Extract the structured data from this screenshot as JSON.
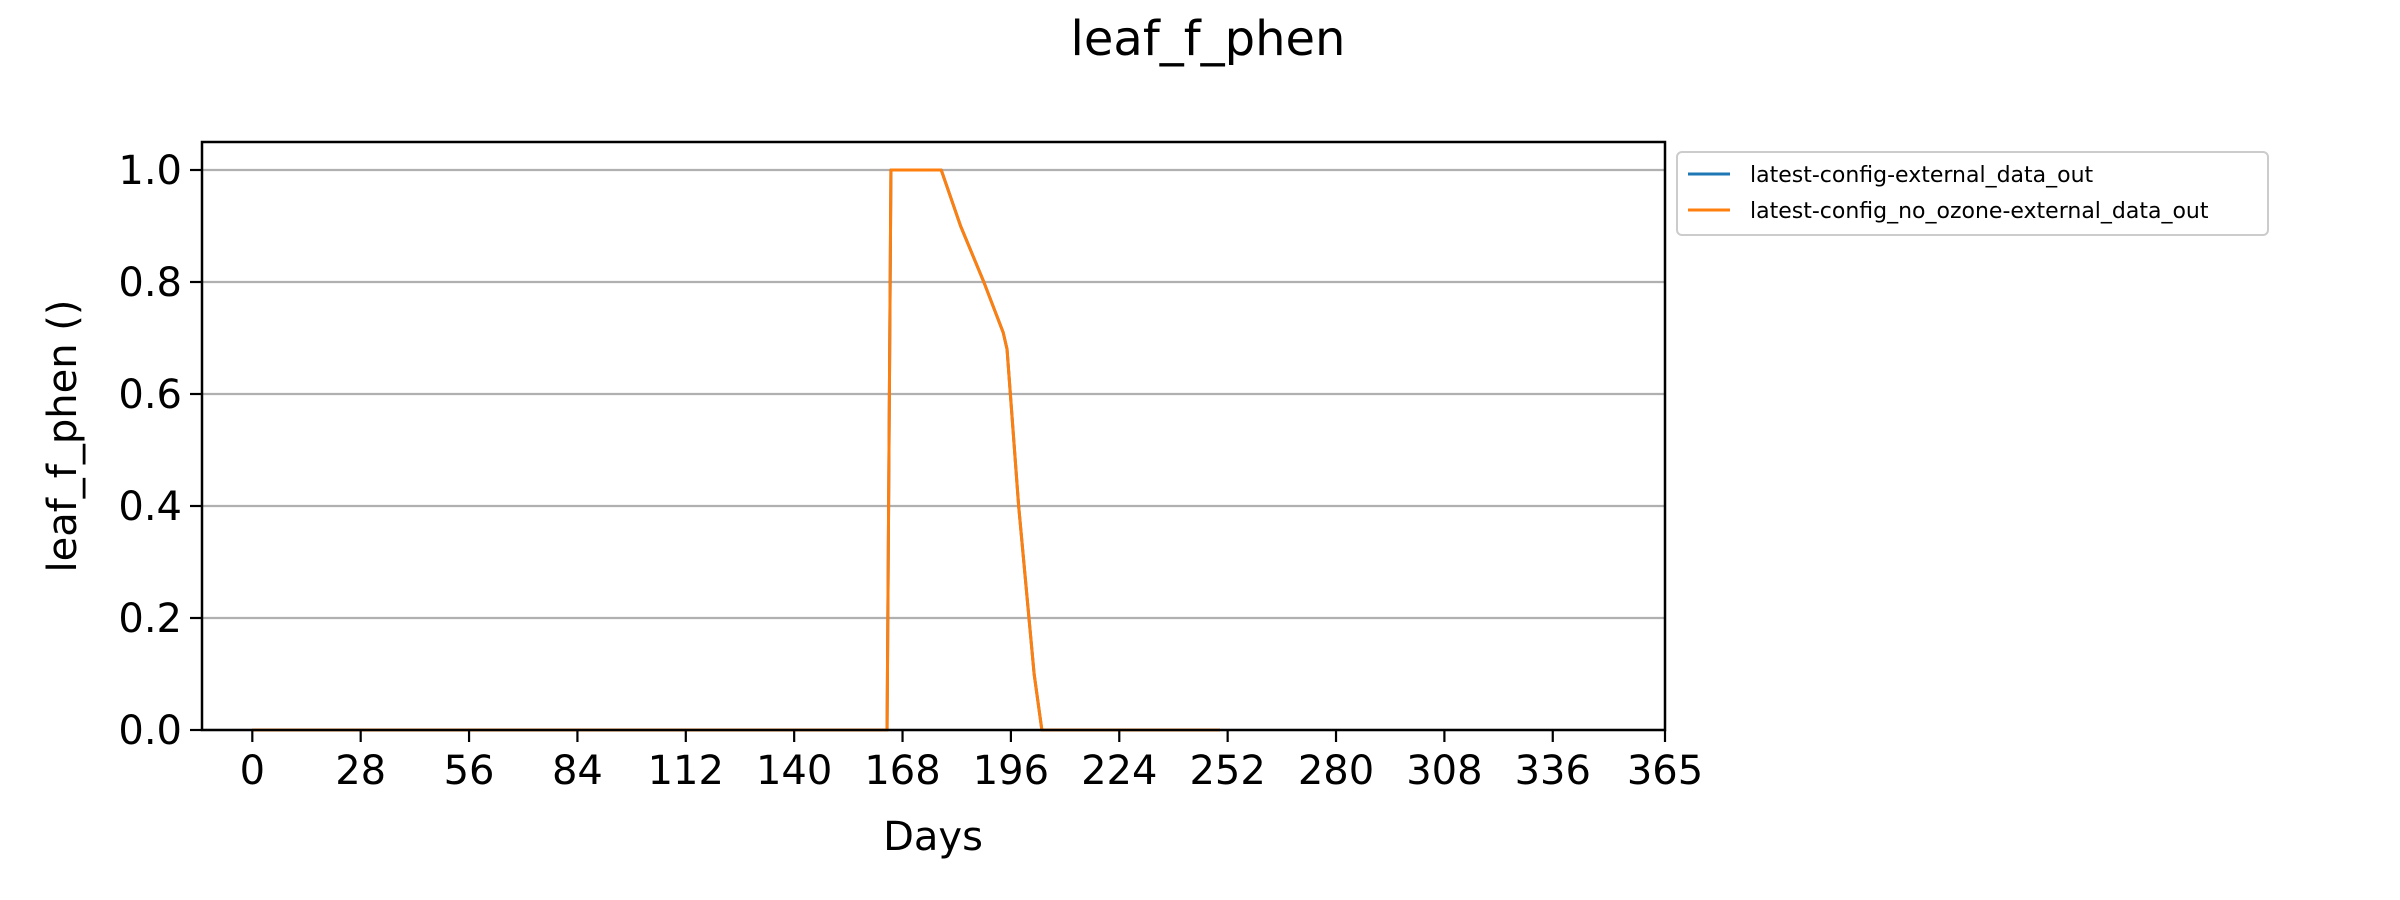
{
  "chart_data": {
    "type": "line",
    "title": "leaf_f_phen",
    "xlabel": "Days",
    "ylabel": "leaf_f_phen ()",
    "xlim": [
      -13,
      365
    ],
    "ylim": [
      0,
      1.05
    ],
    "x_ticks": [
      0,
      28,
      56,
      84,
      112,
      140,
      168,
      196,
      224,
      252,
      280,
      308,
      336,
      365
    ],
    "y_ticks": [
      0.0,
      0.2,
      0.4,
      0.6,
      0.8,
      1.0
    ],
    "y_tick_labels": [
      "0.0",
      "0.2",
      "0.4",
      "0.6",
      "0.8",
      "1.0"
    ],
    "grid": "horizontal",
    "legend_position": "outside-right-top",
    "series": [
      {
        "name": "latest-config-external_data_out",
        "color": "#1f77b4",
        "points": [
          [
            0,
            0
          ],
          [
            164,
            0
          ],
          [
            165,
            1.0
          ],
          [
            178,
            1.0
          ],
          [
            183,
            0.9
          ],
          [
            189,
            0.8
          ],
          [
            194,
            0.71
          ],
          [
            195,
            0.68
          ],
          [
            198,
            0.4
          ],
          [
            202,
            0.1
          ],
          [
            204,
            0.0
          ],
          [
            250,
            0.0
          ]
        ]
      },
      {
        "name": "latest-config_no_ozone-external_data_out",
        "color": "#ff7f0e",
        "points": [
          [
            0,
            0
          ],
          [
            164,
            0
          ],
          [
            165,
            1.0
          ],
          [
            178,
            1.0
          ],
          [
            183,
            0.9
          ],
          [
            189,
            0.8
          ],
          [
            194,
            0.71
          ],
          [
            195,
            0.68
          ],
          [
            198,
            0.4
          ],
          [
            202,
            0.1
          ],
          [
            204,
            0.0
          ],
          [
            250,
            0.0
          ]
        ]
      }
    ]
  }
}
